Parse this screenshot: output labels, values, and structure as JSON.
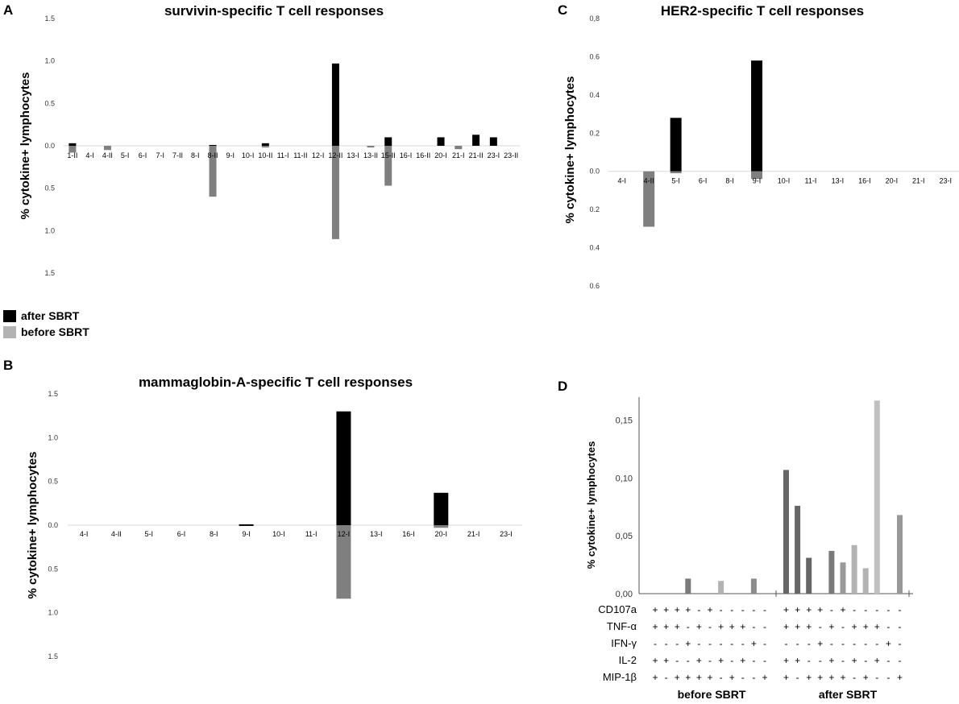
{
  "legend": {
    "after": "after SBRT",
    "before": "before SBRT",
    "after_color": "#000000",
    "before_color": "#b3b3b3"
  },
  "colors": {
    "after": "#000000",
    "before": "#7f7f7f"
  },
  "chart_data": [
    {
      "id": "A",
      "panel_label": "A",
      "type": "bar",
      "title": "survivin-specific T cell responses",
      "ylabel": "% cytokine+ lymphocytes",
      "ylim": [
        -1.5,
        1.5
      ],
      "ytick_values": [
        1.5,
        1.0,
        0.5,
        0.0,
        -0.5,
        -1.0,
        -1.5
      ],
      "ytick_labels": [
        "1.5",
        "1.0",
        "0.5",
        "0.0",
        "0.5",
        "1.0",
        "1.5"
      ],
      "categories": [
        "1-II",
        "4-I",
        "4-II",
        "5-I",
        "6-I",
        "7-I",
        "7-II",
        "8-I",
        "8-II",
        "9-I",
        "10-I",
        "10-II",
        "11-I",
        "11-II",
        "12-I",
        "12-II",
        "13-I",
        "13-II",
        "15-II",
        "16-I",
        "16-II",
        "20-I",
        "21-I",
        "21-II",
        "23-I",
        "23-II"
      ],
      "series": [
        {
          "name": "after SBRT",
          "values": [
            0.03,
            0,
            0,
            0,
            0,
            0,
            0,
            0,
            0.01,
            0,
            0,
            0.03,
            0,
            0,
            0,
            0.97,
            0,
            0,
            0.1,
            0,
            0,
            0.1,
            0,
            0.13,
            0.1,
            0
          ]
        },
        {
          "name": "before SBRT",
          "values": [
            -0.08,
            0,
            -0.05,
            0,
            0,
            0,
            0,
            0,
            -0.6,
            0,
            0,
            -0.02,
            0,
            0,
            0,
            -1.1,
            0,
            -0.02,
            -0.47,
            0,
            0,
            0,
            -0.04,
            0,
            0,
            0
          ]
        }
      ]
    },
    {
      "id": "B",
      "panel_label": "B",
      "type": "bar",
      "title": "mammaglobin-A-specific T cell responses",
      "ylabel": "% cytokine+ lymphocytes",
      "ylim": [
        -1.5,
        1.5
      ],
      "ytick_values": [
        1.5,
        1.0,
        0.5,
        0.0,
        -0.5,
        -1.0,
        -1.5
      ],
      "ytick_labels": [
        "1.5",
        "1.0",
        "0.5",
        "0.0",
        "0.5",
        "1.0",
        "1.5"
      ],
      "categories": [
        "4-I",
        "4-II",
        "5-I",
        "6-I",
        "8-I",
        "9-I",
        "10-I",
        "11-I",
        "12-I",
        "13-I",
        "16-I",
        "20-I",
        "21-I",
        "23-I"
      ],
      "series": [
        {
          "name": "after SBRT",
          "values": [
            0,
            0,
            0,
            0,
            0,
            0.01,
            0,
            0,
            1.3,
            0,
            0,
            0.37,
            0,
            0
          ]
        },
        {
          "name": "before SBRT",
          "values": [
            0,
            0,
            0,
            0,
            0,
            0,
            0,
            0,
            -0.84,
            0,
            0,
            -0.03,
            0,
            0
          ]
        }
      ]
    },
    {
      "id": "C",
      "panel_label": "C",
      "type": "bar",
      "title": "HER2-specific T cell responses",
      "ylabel": "% cytokine+ lymphocytes",
      "ylim": [
        -0.6,
        0.8
      ],
      "ytick_values": [
        0.8,
        0.6,
        0.4,
        0.2,
        0.0,
        -0.2,
        -0.4,
        -0.6
      ],
      "ytick_labels": [
        "0,8",
        "0.6",
        "0.4",
        "0.2",
        "0.0",
        "0.2",
        "0.4",
        "0.6"
      ],
      "categories": [
        "4-I",
        "4-II",
        "5-I",
        "6-I",
        "8-I",
        "9-I",
        "10-I",
        "11-I",
        "13-I",
        "16-I",
        "20-I",
        "21-I",
        "23-I"
      ],
      "series": [
        {
          "name": "after SBRT",
          "values": [
            0,
            0,
            0.28,
            0,
            0,
            0.58,
            0,
            0,
            0,
            0,
            0,
            0,
            0
          ]
        },
        {
          "name": "before SBRT",
          "values": [
            0,
            -0.29,
            -0.01,
            0,
            0,
            -0.04,
            0,
            0,
            0,
            0,
            0,
            0,
            0
          ]
        }
      ]
    },
    {
      "id": "D",
      "panel_label": "D",
      "type": "bar",
      "title": "",
      "ylabel": "% cytokine+ lymphocytes",
      "ylim": [
        0,
        0.17
      ],
      "ytick_values": [
        0.15,
        0.1,
        0.05,
        0.0
      ],
      "ytick_labels": [
        "0,15",
        "0,10",
        "0,05",
        "0,00"
      ],
      "groups": [
        "before SBRT",
        "after SBRT"
      ],
      "row_labels": [
        "CD107a",
        "TNF-α",
        "IFN-γ",
        "IL-2",
        "MIP-1β"
      ],
      "combinations": [
        [
          "++++-+-----",
          "++++-+-----"
        ],
        [
          "+++-+-+++--",
          "+++-+-+++--"
        ],
        [
          "---+-----+-",
          "---+-----+-"
        ],
        [
          "++--+-+-+--",
          "++--+-+-+--"
        ],
        [
          "+-++++-+--+",
          "+-++++-+--+"
        ]
      ],
      "before_values": [
        0,
        0,
        0,
        0.013,
        0,
        0,
        0.011,
        0,
        0,
        0.013,
        0
      ],
      "after_values": [
        0.107,
        0.076,
        0.031,
        0,
        0.037,
        0.027,
        0.042,
        0.022,
        0.167,
        0,
        0.068
      ],
      "bar_colors": [
        "#666666",
        "#666666",
        "#666666",
        "#7a7a7a",
        "#7a7a7a",
        "#999999",
        "#b3b3b3",
        "#b3b3b3",
        "#c0c0c0",
        "#8c8c8c",
        "#999999"
      ]
    }
  ]
}
